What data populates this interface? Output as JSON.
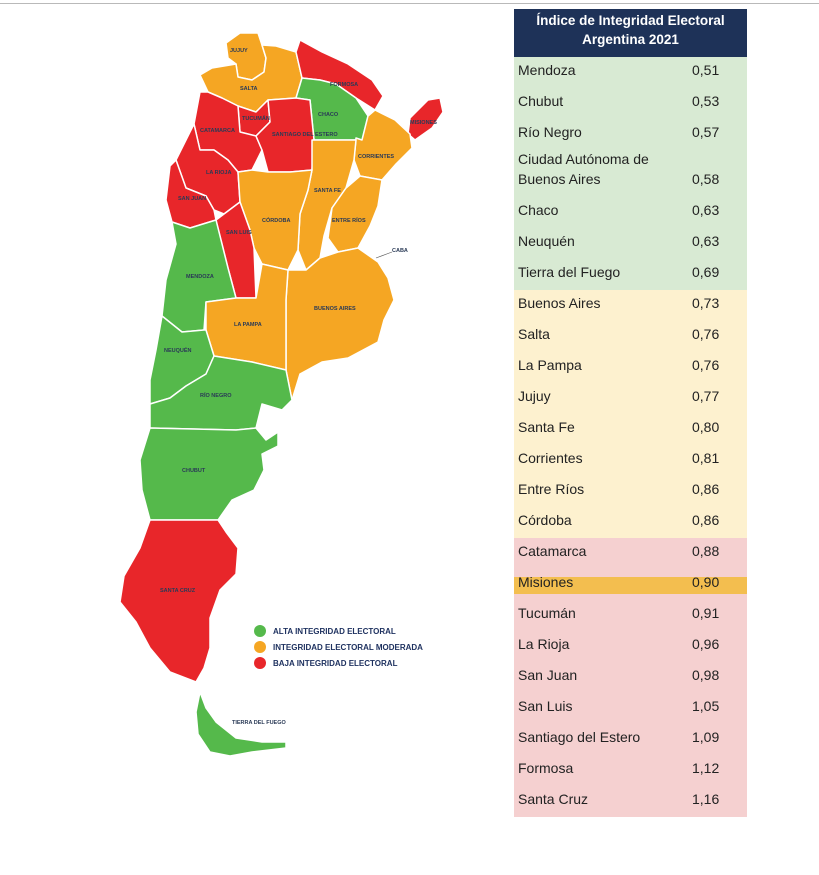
{
  "colors": {
    "alta": "#55b94b",
    "moderada": "#f5a623",
    "baja": "#e8262a",
    "header_bg": "#1e3258",
    "alta_row": "#d8ead3",
    "moderada_row": "#fdf1cf",
    "baja_row": "#f5d0d0",
    "highlight_row": "#f3be4f"
  },
  "table": {
    "title_line1": "Índice de Integridad Electoral",
    "title_line2": "Argentina 2021",
    "rows": [
      {
        "name": "Mendoza",
        "value": "0,51",
        "group": "alta"
      },
      {
        "name": "Chubut",
        "value": "0,53",
        "group": "alta"
      },
      {
        "name": "Río Negro",
        "value": "0,57",
        "group": "alta"
      },
      {
        "name": "Ciudad Autónoma de Buenos Aires",
        "value": "0,58",
        "group": "alta"
      },
      {
        "name": "Chaco",
        "value": "0,63",
        "group": "alta"
      },
      {
        "name": "Neuquén",
        "value": "0,63",
        "group": "alta"
      },
      {
        "name": "Tierra del Fuego",
        "value": "0,69",
        "group": "alta"
      },
      {
        "name": "Buenos Aires",
        "value": "0,73",
        "group": "moderada"
      },
      {
        "name": "Salta",
        "value": "0,76",
        "group": "moderada"
      },
      {
        "name": "La Pampa",
        "value": "0,76",
        "group": "moderada"
      },
      {
        "name": "Jujuy",
        "value": "0,77",
        "group": "moderada"
      },
      {
        "name": "Santa Fe",
        "value": "0,80",
        "group": "moderada"
      },
      {
        "name": "Corrientes",
        "value": "0,81",
        "group": "moderada"
      },
      {
        "name": "Entre Ríos",
        "value": "0,86",
        "group": "moderada"
      },
      {
        "name": "Córdoba",
        "value": "0,86",
        "group": "moderada"
      },
      {
        "name": "Catamarca",
        "value": "0,88",
        "group": "baja"
      },
      {
        "name": "Misiones",
        "value": "0,90",
        "group": "baja",
        "highlighted": true
      },
      {
        "name": "Tucumán",
        "value": "0,91",
        "group": "baja"
      },
      {
        "name": "La Rioja",
        "value": "0,96",
        "group": "baja"
      },
      {
        "name": "San Juan",
        "value": "0,98",
        "group": "baja"
      },
      {
        "name": "San Luis",
        "value": "1,05",
        "group": "baja"
      },
      {
        "name": "Santiago del Estero",
        "value": "1,09",
        "group": "baja"
      },
      {
        "name": "Formosa",
        "value": "1,12",
        "group": "baja"
      },
      {
        "name": "Santa Cruz",
        "value": "1,16",
        "group": "baja"
      }
    ]
  },
  "legend": {
    "items": [
      {
        "label": "ALTA INTEGRIDAD ELECTORAL",
        "color": "#55b94b"
      },
      {
        "label": "INTEGRIDAD ELECTORAL MODERADA",
        "color": "#f5a623"
      },
      {
        "label": "BAJA INTEGRIDAD ELECTORAL",
        "color": "#e8262a"
      }
    ]
  },
  "map_labels": {
    "jujuy": "JUJUY",
    "salta": "SALTA",
    "formosa": "FORMOSA",
    "chaco": "CHACO",
    "misiones": "MISIONES",
    "tucuman": "TUCUMÁN",
    "catamarca": "CATAMARCA",
    "santiago": "SANTIAGO DEL ESTERO",
    "corrientes": "CORRIENTES",
    "la_rioja": "LA RIOJA",
    "santa_fe": "SANTA FE",
    "cordoba": "CÓRDOBA",
    "entre_rios": "ENTRE RÍOS",
    "san_juan": "SAN JUAN",
    "san_luis": "SAN LUIS",
    "caba": "CABA",
    "mendoza": "MENDOZA",
    "buenos_aires": "BUENOS AIRES",
    "la_pampa": "LA PAMPA",
    "neuquen": "NEUQUÉN",
    "rio_negro": "RÍO NEGRO",
    "chubut": "CHUBUT",
    "santa_cruz": "SANTA CRUZ",
    "tierra_del_fuego": "TIERRA DEL FUEGO"
  }
}
